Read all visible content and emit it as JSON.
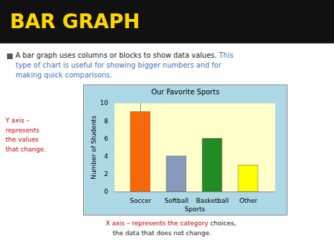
{
  "chart_data": {
    "type": "bar",
    "title": "Our Favorite Sports",
    "x_label": "Sports",
    "y_label": "Number of Students",
    "categories": [
      "Soccer",
      "Softball",
      "Basketball",
      "Other"
    ],
    "values": [
      9,
      4,
      6,
      3
    ],
    "colors": [
      "#FF6600",
      "#8899BB",
      "#228B22",
      "#FFFF00"
    ],
    "ylim": [
      0,
      10
    ],
    "yticks": [
      0,
      2,
      4,
      6,
      8,
      10
    ],
    "grid": true,
    "annotations": [
      {
        "text": "BAR GRAPH",
        "color": "#FFD700"
      },
      {
        "text": "A bar graph uses columns or blocks to show data values.",
        "color": "#1a1a1a"
      },
      {
        "text": "This\ntype of chart is useful for showing bigger numbers and for\nmaking quick comparisons.",
        "color": "#4472C4"
      },
      {
        "text": "Y axis –\nrepresents\nthe values\nthat change.",
        "color": "#CC0000"
      },
      {
        "text": "X axis – represents the category",
        "color": "#CC0000"
      },
      {
        "text": " choices,",
        "color": "#222222"
      },
      {
        "text": "the data that does not change.",
        "color": "#222222"
      }
    ]
  }
}
